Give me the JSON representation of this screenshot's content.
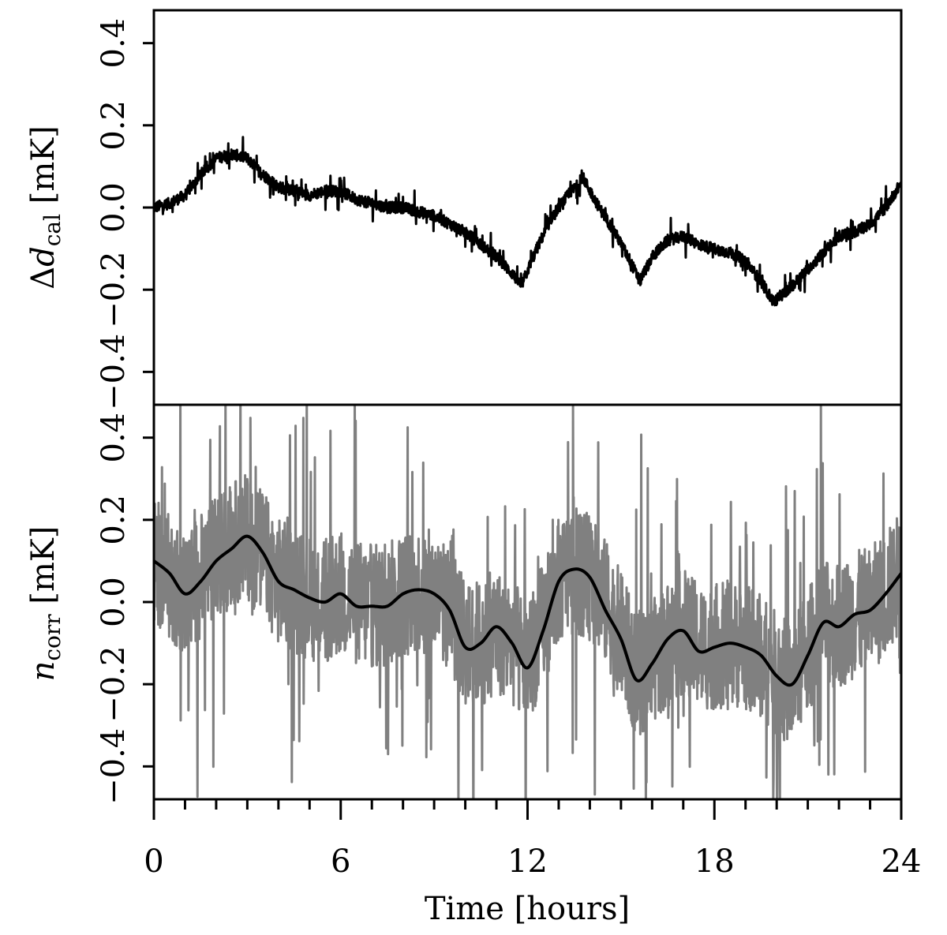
{
  "chart_data": [
    {
      "type": "line",
      "panel": "top",
      "ylabel": {
        "prefix": "Δ",
        "var": "d",
        "sub": "cal",
        "unit": " [mK]"
      },
      "xlim": [
        0,
        24
      ],
      "ylim": [
        -0.48,
        0.48
      ],
      "yticks": [
        -0.4,
        -0.2,
        0.0,
        0.2,
        0.4
      ],
      "ytick_labels": [
        "−0.4",
        "−0.2",
        "0.0",
        "0.2",
        "0.4"
      ],
      "grid": false,
      "series": [
        {
          "color": "#000000",
          "noise_amplitude": 0.025,
          "x": [
            0,
            0.5,
            1.0,
            1.5,
            2.0,
            2.5,
            3.0,
            3.5,
            4.0,
            4.5,
            5.0,
            5.5,
            6.0,
            6.5,
            7.0,
            7.5,
            8.0,
            8.5,
            9.0,
            9.5,
            10.0,
            10.5,
            11.0,
            11.5,
            11.8,
            12.3,
            12.8,
            13.3,
            13.8,
            14.3,
            14.8,
            15.3,
            15.6,
            16.0,
            16.5,
            17.0,
            17.5,
            18.0,
            18.5,
            19.0,
            19.5,
            19.9,
            20.5,
            21.0,
            21.5,
            22.0,
            22.5,
            23.0,
            23.5,
            24.0
          ],
          "y": [
            0.0,
            0.01,
            0.03,
            0.08,
            0.12,
            0.13,
            0.12,
            0.08,
            0.05,
            0.04,
            0.03,
            0.04,
            0.04,
            0.02,
            0.01,
            0.0,
            0.0,
            -0.01,
            -0.02,
            -0.04,
            -0.06,
            -0.09,
            -0.12,
            -0.16,
            -0.19,
            -0.1,
            -0.02,
            0.03,
            0.07,
            0.0,
            -0.06,
            -0.13,
            -0.18,
            -0.12,
            -0.08,
            -0.07,
            -0.09,
            -0.1,
            -0.11,
            -0.13,
            -0.18,
            -0.23,
            -0.19,
            -0.15,
            -0.11,
            -0.07,
            -0.06,
            -0.04,
            0.0,
            0.06
          ]
        }
      ]
    },
    {
      "type": "line",
      "panel": "bottom",
      "xlabel": "Time [hours]",
      "ylabel": {
        "prefix": "",
        "var": "n",
        "sub": "corr",
        "unit": " [mK]"
      },
      "xlim": [
        0,
        24
      ],
      "ylim": [
        -0.48,
        0.48
      ],
      "xticks": [
        0,
        6,
        12,
        18,
        24
      ],
      "xtick_labels": [
        "0",
        "6",
        "12",
        "18",
        "24"
      ],
      "yticks": [
        -0.4,
        -0.2,
        0.0,
        0.2,
        0.4
      ],
      "ytick_labels": [
        "−0.4",
        "−0.2",
        "0.0",
        "0.2",
        "0.4"
      ],
      "grid": false,
      "series": [
        {
          "color": "#808080",
          "noise_amplitude": 0.28,
          "x": [
            0,
            0.5,
            1.0,
            1.5,
            2.0,
            2.5,
            3.0,
            3.5,
            4.0,
            4.5,
            5.0,
            5.5,
            6.0,
            6.5,
            7.0,
            7.5,
            8.0,
            8.5,
            9.0,
            9.5,
            10.0,
            10.5,
            11.0,
            11.5,
            12.0,
            12.5,
            13.0,
            13.5,
            14.0,
            14.5,
            15.0,
            15.5,
            16.0,
            16.5,
            17.0,
            17.5,
            18.0,
            18.5,
            19.0,
            19.5,
            20.0,
            20.5,
            21.0,
            21.5,
            22.0,
            22.5,
            23.0,
            23.5,
            24.0
          ],
          "y": [
            0.1,
            0.06,
            0.02,
            0.06,
            0.11,
            0.14,
            0.16,
            0.12,
            0.05,
            0.03,
            0.01,
            0.0,
            0.02,
            0.0,
            -0.01,
            -0.01,
            0.02,
            0.03,
            0.02,
            -0.02,
            -0.1,
            -0.1,
            -0.07,
            -0.1,
            -0.15,
            -0.05,
            0.05,
            0.08,
            0.06,
            0.0,
            -0.08,
            -0.18,
            -0.15,
            -0.1,
            -0.07,
            -0.11,
            -0.11,
            -0.1,
            -0.11,
            -0.13,
            -0.18,
            -0.2,
            -0.12,
            -0.05,
            -0.06,
            -0.03,
            -0.02,
            0.02,
            0.07
          ]
        },
        {
          "color": "#000000",
          "noise_amplitude": 0,
          "x": [
            0,
            0.5,
            1.0,
            1.5,
            2.0,
            2.5,
            3.0,
            3.5,
            4.0,
            4.5,
            5.0,
            5.5,
            6.0,
            6.5,
            7.0,
            7.5,
            8.0,
            8.5,
            9.0,
            9.5,
            10.0,
            10.5,
            11.0,
            11.5,
            12.0,
            12.5,
            13.0,
            13.5,
            14.0,
            14.5,
            15.0,
            15.5,
            16.0,
            16.5,
            17.0,
            17.5,
            18.0,
            18.5,
            19.0,
            19.5,
            20.0,
            20.5,
            21.0,
            21.5,
            22.0,
            22.5,
            23.0,
            23.5,
            24.0
          ],
          "y": [
            0.1,
            0.07,
            0.02,
            0.05,
            0.1,
            0.13,
            0.16,
            0.12,
            0.05,
            0.03,
            0.01,
            0.0,
            0.02,
            -0.01,
            -0.01,
            -0.01,
            0.02,
            0.03,
            0.02,
            -0.02,
            -0.11,
            -0.1,
            -0.06,
            -0.1,
            -0.16,
            -0.07,
            0.05,
            0.08,
            0.06,
            -0.02,
            -0.09,
            -0.19,
            -0.15,
            -0.09,
            -0.07,
            -0.12,
            -0.11,
            -0.1,
            -0.11,
            -0.13,
            -0.18,
            -0.2,
            -0.13,
            -0.05,
            -0.06,
            -0.03,
            -0.02,
            0.02,
            0.07
          ]
        }
      ]
    }
  ]
}
